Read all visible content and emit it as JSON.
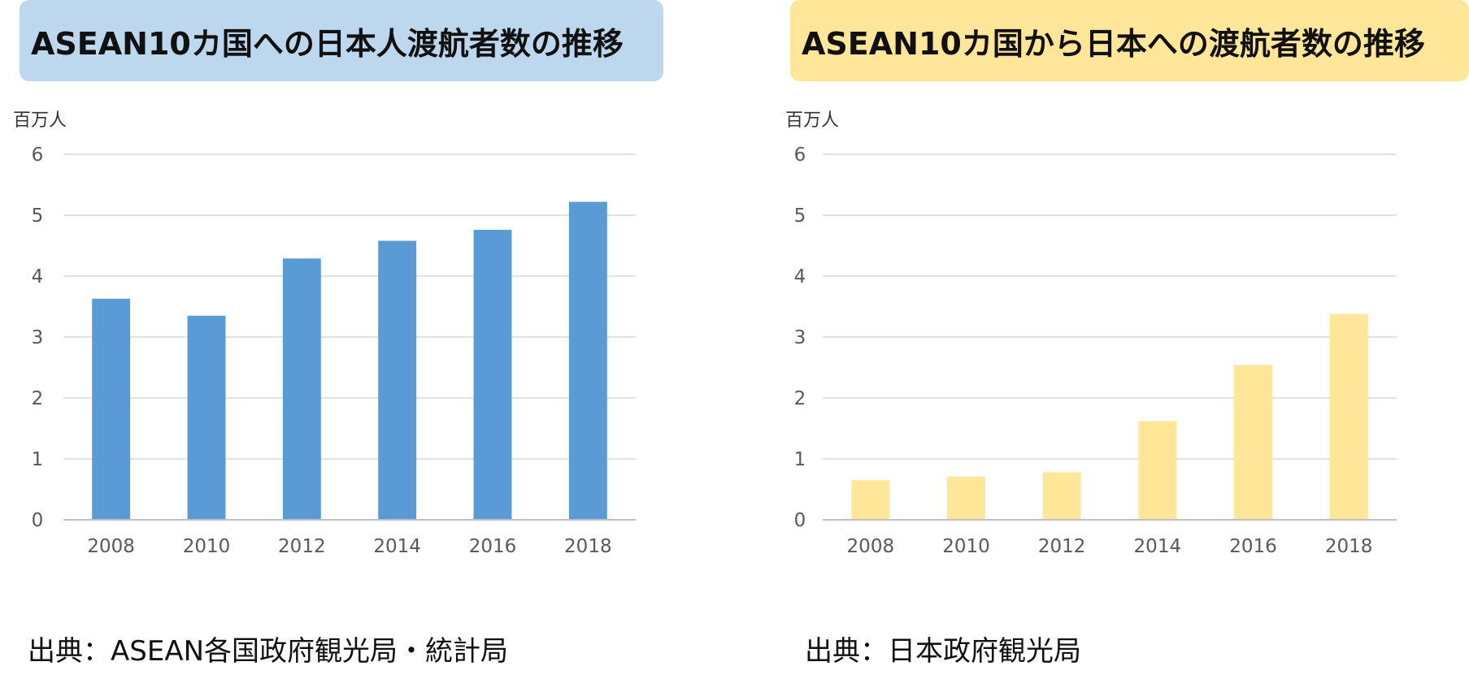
{
  "charts": [
    {
      "title": "ASEAN10カ国への日本人渡航者数の推移",
      "unit": "百万人",
      "source": "出典：ASEAN各国政府観光局・統計局",
      "title_bg": "#BDD7EE",
      "bar_color": "#5B9BD5"
    },
    {
      "title": "ASEAN10カ国から日本への渡航者数の推移",
      "unit": "百万人",
      "source": "出典：日本政府観光局",
      "title_bg": "#FFE699",
      "bar_color": "#FFE699"
    }
  ],
  "chart_data": [
    {
      "type": "bar",
      "title": "ASEAN10カ国への日本人渡航者数の推移",
      "ylabel": "百万人",
      "categories": [
        "2008",
        "2010",
        "2012",
        "2014",
        "2016",
        "2018"
      ],
      "values": [
        3.63,
        3.35,
        4.29,
        4.58,
        4.76,
        5.22
      ],
      "ylim": [
        0,
        6
      ],
      "yticks": [
        "0",
        "1",
        "2",
        "3",
        "4",
        "5",
        "6"
      ],
      "grid": true,
      "color": "#5B9BD5"
    },
    {
      "type": "bar",
      "title": "ASEAN10カ国から日本への渡航者数の推移",
      "ylabel": "百万人",
      "categories": [
        "2008",
        "2010",
        "2012",
        "2014",
        "2016",
        "2018"
      ],
      "values": [
        0.65,
        0.71,
        0.78,
        1.62,
        2.54,
        3.38
      ],
      "ylim": [
        0,
        6
      ],
      "yticks": [
        "0",
        "1",
        "2",
        "3",
        "4",
        "5",
        "6"
      ],
      "grid": true,
      "color": "#FFE699"
    }
  ]
}
